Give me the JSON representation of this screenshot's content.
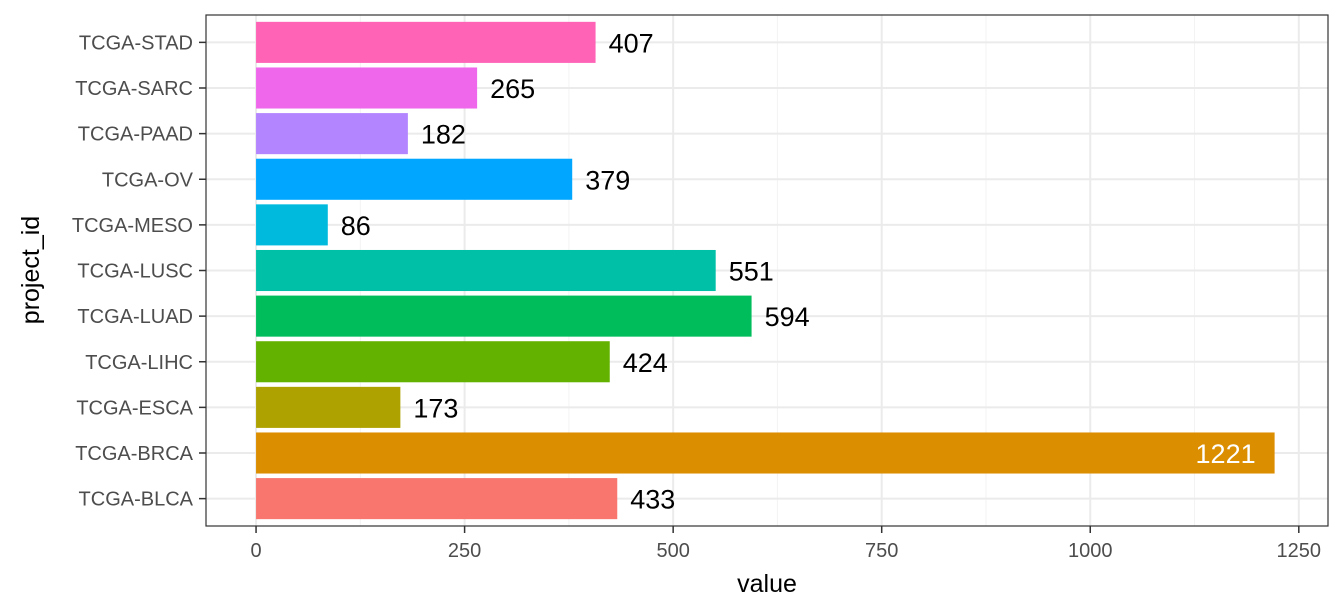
{
  "chart_data": {
    "type": "bar",
    "orientation": "horizontal",
    "xlabel": "value",
    "ylabel": "project_id",
    "xlim": [
      -60,
      1285
    ],
    "x_ticks": [
      0,
      250,
      500,
      750,
      1000,
      1250
    ],
    "x_tick_labels": [
      "0",
      "250",
      "500",
      "750",
      "1000",
      "1250"
    ],
    "grid": true,
    "legend": "none",
    "categories": [
      "TCGA-BLCA",
      "TCGA-BRCA",
      "TCGA-ESCA",
      "TCGA-LIHC",
      "TCGA-LUAD",
      "TCGA-LUSC",
      "TCGA-MESO",
      "TCGA-OV",
      "TCGA-PAAD",
      "TCGA-SARC",
      "TCGA-STAD"
    ],
    "values": [
      433,
      1221,
      173,
      424,
      594,
      551,
      86,
      379,
      182,
      265,
      407
    ],
    "data_labels": [
      "433",
      "1221",
      "173",
      "424",
      "594",
      "551",
      "86",
      "379",
      "182",
      "265",
      "407"
    ],
    "colors": [
      "#F8766D",
      "#DB8E00",
      "#AEA200",
      "#64B200",
      "#00BD5C",
      "#00C1A7",
      "#00BADE",
      "#00A6FF",
      "#B385FF",
      "#EF67EB",
      "#FF63B6"
    ],
    "label_inside": [
      false,
      true,
      false,
      false,
      false,
      false,
      false,
      false,
      false,
      false,
      false
    ]
  }
}
